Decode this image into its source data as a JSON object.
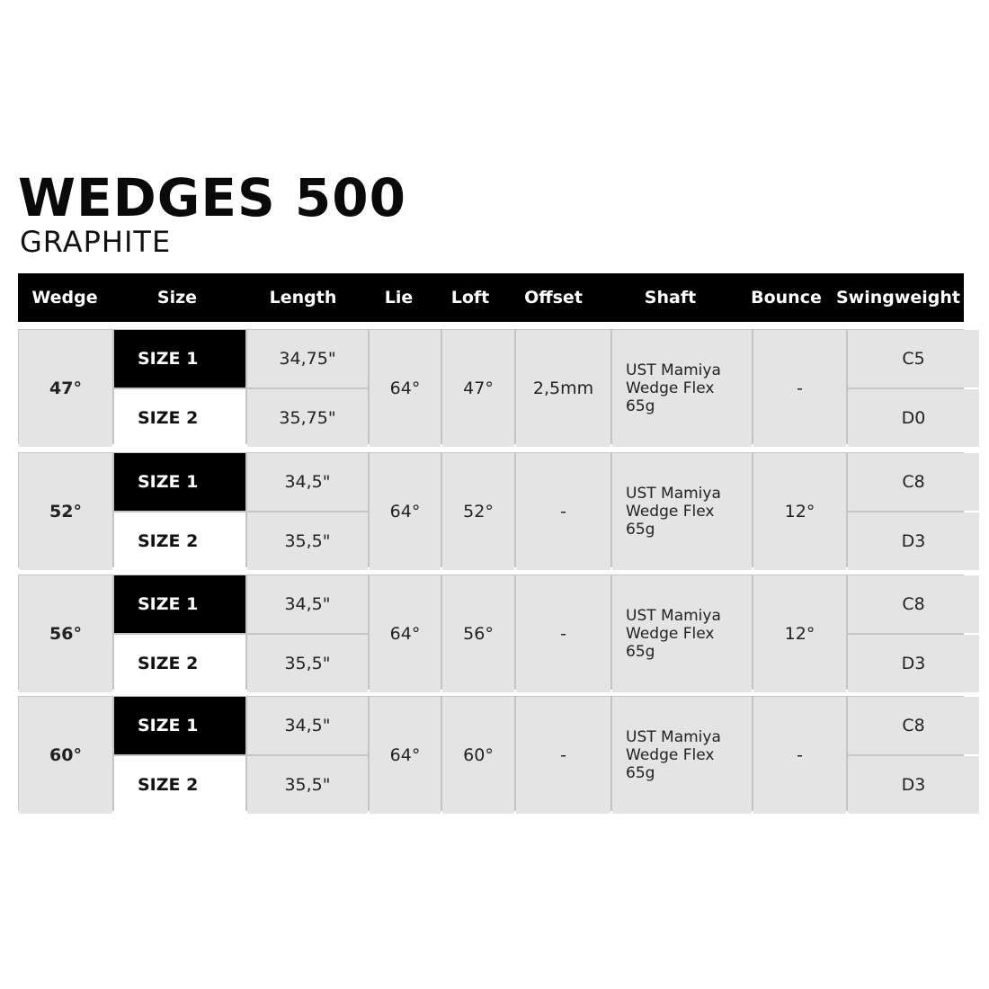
{
  "title": "WEDGES 500",
  "subtitle": "GRAPHITE",
  "columns": [
    "Wedge",
    "Size",
    "Length",
    "Lie",
    "Loft",
    "Offset",
    "Shaft",
    "Bounce",
    "Swingweight"
  ],
  "rows": [
    {
      "wedge": "47°",
      "sizes": [
        {
          "size": "SIZE 1",
          "length": "34,75\"",
          "swingweight": "C5"
        },
        {
          "size": "SIZE 2",
          "length": "35,75\"",
          "swingweight": "D0"
        }
      ],
      "lie": "64°",
      "loft": "47°",
      "offset": "2,5mm",
      "shaft": [
        "UST Mamiya",
        "Wedge Flex",
        "65g"
      ],
      "bounce": "-"
    },
    {
      "wedge": "52°",
      "sizes": [
        {
          "size": "SIZE 1",
          "length": "34,5\"",
          "swingweight": "C8"
        },
        {
          "size": "SIZE 2",
          "length": "35,5\"",
          "swingweight": "D3"
        }
      ],
      "lie": "64°",
      "loft": "52°",
      "offset": "-",
      "shaft": [
        "UST Mamiya",
        "Wedge Flex",
        "65g"
      ],
      "bounce": "12°"
    },
    {
      "wedge": "56°",
      "sizes": [
        {
          "size": "SIZE 1",
          "length": "34,5\"",
          "swingweight": "C8"
        },
        {
          "size": "SIZE 2",
          "length": "35,5\"",
          "swingweight": "D3"
        }
      ],
      "lie": "64°",
      "loft": "56°",
      "offset": "-",
      "shaft": [
        "UST Mamiya",
        "Wedge Flex",
        "65g"
      ],
      "bounce": "12°"
    },
    {
      "wedge": "60°",
      "sizes": [
        {
          "size": "SIZE 1",
          "length": "34,5\"",
          "swingweight": "C8"
        },
        {
          "size": "SIZE 2",
          "length": "35,5\"",
          "swingweight": "D3"
        }
      ],
      "lie": "64°",
      "loft": "60°",
      "offset": "-",
      "shaft": [
        "UST Mamiya",
        "Wedge Flex",
        "65g"
      ],
      "bounce": "-"
    }
  ]
}
